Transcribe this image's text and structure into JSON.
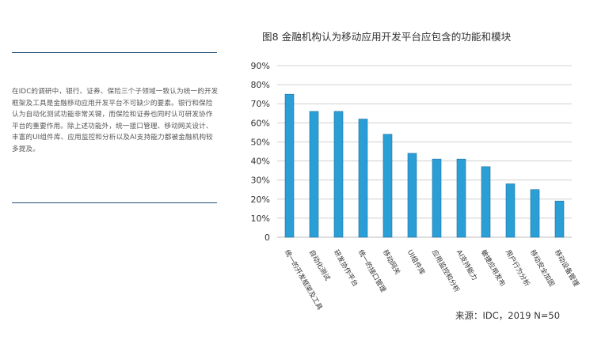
{
  "left_panel": {
    "description": "在IDC的调研中，银行、证券、保险三个子领域一致认为统一的开发框架及工具是金融移动应用开发平台不可缺少的要素。银行和保险认为自动化测试功能非常关键，而保险和证券也同时认可研发协作平台的重要作用。除上述功能外，统一接口管理、移动网关设计、丰富的UI组件库、应用监控和分析以及AI支持能力都被金融机构较多提及。"
  },
  "colors": {
    "bar": "#2a9fd6",
    "bar_edge": "#1f6fa0",
    "rule": "#1f4e79",
    "grid": "#d0d0d0"
  },
  "chart_data": {
    "type": "bar",
    "title": "图8 金融机构认为移动应用开发平台应包含的功能和模块",
    "source": "来源：IDC，2019 N=50",
    "categories": [
      "统一的开发框架及工具",
      "自动化测试",
      "研发协作平台",
      "统一的接口管理",
      "移动网关",
      "UI组件库",
      "应用监控和分析",
      "AI支持能力",
      "敏捷应用发布",
      "用户行为分析",
      "移动安全加固",
      "移动设备管理"
    ],
    "values": [
      75,
      66,
      66,
      62,
      54,
      44,
      41,
      41,
      37,
      28,
      25,
      19
    ],
    "yticks": [
      "0",
      "10%",
      "20%",
      "30%",
      "40%",
      "50%",
      "60%",
      "70%",
      "80%",
      "90%"
    ],
    "ylim": [
      0,
      90
    ],
    "grid": true,
    "legend": "none"
  }
}
